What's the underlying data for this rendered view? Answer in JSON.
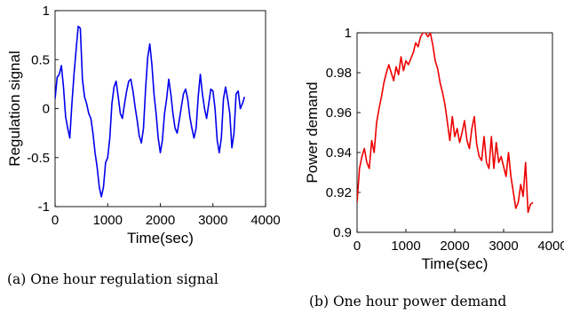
{
  "chart_data": [
    {
      "type": "line",
      "xlabel": "Time(sec)",
      "ylabel": "Regulation signal",
      "xlim": [
        0,
        4000
      ],
      "ylim": [
        -1,
        1
      ],
      "xticks": [
        "0",
        "1000",
        "2000",
        "3000",
        "4000"
      ],
      "yticks": [
        "-1",
        "-0.5",
        "0",
        "0.5",
        "1"
      ],
      "grid": false,
      "series": [
        {
          "color": "#0000ee",
          "x": [
            0,
            40,
            80,
            120,
            160,
            200,
            240,
            280,
            320,
            360,
            400,
            440,
            480,
            520,
            560,
            600,
            640,
            680,
            720,
            760,
            800,
            840,
            880,
            920,
            960,
            1000,
            1040,
            1080,
            1120,
            1160,
            1200,
            1240,
            1280,
            1320,
            1360,
            1400,
            1440,
            1480,
            1520,
            1560,
            1600,
            1640,
            1680,
            1720,
            1760,
            1800,
            1840,
            1880,
            1920,
            1960,
            2000,
            2040,
            2080,
            2120,
            2160,
            2200,
            2240,
            2280,
            2320,
            2360,
            2400,
            2440,
            2480,
            2520,
            2560,
            2600,
            2640,
            2680,
            2720,
            2760,
            2800,
            2840,
            2880,
            2920,
            2960,
            3000,
            3040,
            3080,
            3120,
            3160,
            3200,
            3240,
            3280,
            3320,
            3360,
            3400,
            3440,
            3480,
            3520,
            3560,
            3600
          ],
          "y": [
            0.1,
            0.32,
            0.35,
            0.44,
            0.22,
            -0.08,
            -0.2,
            -0.3,
            0.05,
            0.35,
            0.6,
            0.84,
            0.82,
            0.3,
            0.12,
            0.05,
            -0.05,
            -0.1,
            -0.25,
            -0.45,
            -0.6,
            -0.8,
            -0.9,
            -0.8,
            -0.55,
            -0.5,
            -0.3,
            0.05,
            0.22,
            0.28,
            0.12,
            -0.05,
            -0.1,
            0.05,
            0.18,
            0.28,
            0.3,
            0.18,
            0.02,
            -0.12,
            -0.28,
            -0.35,
            -0.2,
            0.2,
            0.52,
            0.66,
            0.45,
            0.15,
            -0.05,
            -0.3,
            -0.45,
            -0.32,
            -0.05,
            0.1,
            0.3,
            0.15,
            -0.05,
            -0.2,
            -0.25,
            -0.12,
            0.02,
            0.15,
            0.2,
            0.1,
            -0.08,
            -0.2,
            -0.3,
            -0.2,
            0.12,
            0.35,
            0.15,
            0.0,
            -0.1,
            0.05,
            0.2,
            0.18,
            0.0,
            -0.32,
            -0.45,
            -0.3,
            0.1,
            0.22,
            0.1,
            -0.05,
            -0.4,
            -0.25,
            0.15,
            0.18,
            0.0,
            0.05,
            0.12
          ]
        }
      ]
    },
    {
      "type": "line",
      "xlabel": "Time(sec)",
      "ylabel": "Power demand",
      "xlim": [
        0,
        4000
      ],
      "ylim": [
        0.9,
        1
      ],
      "xticks": [
        "0",
        "1000",
        "2000",
        "3000",
        "4000"
      ],
      "yticks": [
        "0.9",
        "0.92",
        "0.94",
        "0.96",
        "0.98",
        "1"
      ],
      "grid": false,
      "series": [
        {
          "color": "#ee0000",
          "x": [
            0,
            50,
            100,
            150,
            200,
            250,
            300,
            350,
            400,
            450,
            500,
            550,
            600,
            650,
            700,
            750,
            800,
            850,
            900,
            950,
            1000,
            1050,
            1100,
            1150,
            1200,
            1250,
            1300,
            1350,
            1400,
            1450,
            1500,
            1550,
            1600,
            1650,
            1700,
            1750,
            1800,
            1850,
            1900,
            1950,
            2000,
            2050,
            2100,
            2150,
            2200,
            2250,
            2300,
            2350,
            2400,
            2450,
            2500,
            2550,
            2600,
            2650,
            2700,
            2750,
            2800,
            2850,
            2900,
            2950,
            3000,
            3050,
            3100,
            3150,
            3200,
            3250,
            3300,
            3350,
            3400,
            3450,
            3500,
            3550,
            3600
          ],
          "y": [
            0.915,
            0.932,
            0.938,
            0.942,
            0.935,
            0.932,
            0.946,
            0.94,
            0.955,
            0.962,
            0.968,
            0.975,
            0.98,
            0.984,
            0.98,
            0.976,
            0.983,
            0.979,
            0.988,
            0.981,
            0.986,
            0.984,
            0.987,
            0.99,
            0.995,
            0.993,
            0.998,
            1.0,
            1.0,
            0.998,
            1.0,
            0.994,
            0.986,
            0.982,
            0.975,
            0.97,
            0.964,
            0.955,
            0.946,
            0.958,
            0.948,
            0.952,
            0.945,
            0.95,
            0.956,
            0.946,
            0.942,
            0.952,
            0.958,
            0.944,
            0.938,
            0.936,
            0.948,
            0.935,
            0.932,
            0.948,
            0.932,
            0.945,
            0.935,
            0.938,
            0.933,
            0.928,
            0.94,
            0.928,
            0.92,
            0.912,
            0.915,
            0.924,
            0.918,
            0.935,
            0.91,
            0.914,
            0.915
          ]
        }
      ]
    }
  ],
  "captions": {
    "a": "(a) One hour regulation signal",
    "b": "(b) One hour power demand"
  }
}
